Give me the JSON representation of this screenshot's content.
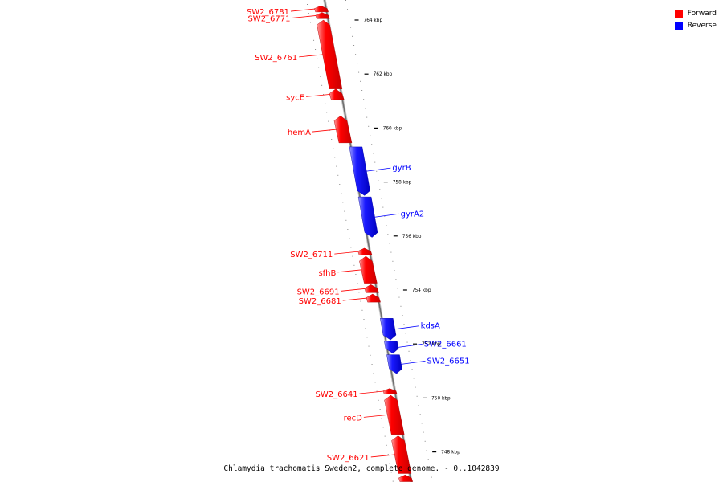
{
  "legend": {
    "forward_label": "Forward",
    "reverse_label": "Reverse",
    "forward_color": "#ff0000",
    "reverse_color": "#0000ff"
  },
  "caption": "Chlamydia trachomatis Sweden2, complete genome. - 0..1042839",
  "scale": {
    "unit": "kbp",
    "ticks": [
      764,
      762,
      760,
      758,
      756,
      754,
      752,
      750,
      748
    ]
  },
  "genes": [
    {
      "name": "SW2_6781",
      "strand": "forward",
      "start_kbp": 764.53,
      "end_kbp": 764.3
    },
    {
      "name": "SW2_6771",
      "strand": "forward",
      "start_kbp": 764.28,
      "end_kbp": 764.05
    },
    {
      "name": "SW2_6761",
      "strand": "forward",
      "start_kbp": 764.0,
      "end_kbp": 761.45
    },
    {
      "name": "sycE",
      "strand": "forward",
      "start_kbp": 761.45,
      "end_kbp": 761.05
    },
    {
      "name": "hemA",
      "strand": "forward",
      "start_kbp": 760.45,
      "end_kbp": 759.45
    },
    {
      "name": "gyrB",
      "strand": "reverse",
      "start_kbp": 759.3,
      "end_kbp": 757.5
    },
    {
      "name": "gyrA2",
      "strand": "reverse",
      "start_kbp": 757.45,
      "end_kbp": 755.95
    },
    {
      "name": "SW2_6711",
      "strand": "forward",
      "start_kbp": 755.55,
      "end_kbp": 755.3
    },
    {
      "name": "sfhB",
      "strand": "forward",
      "start_kbp": 755.25,
      "end_kbp": 754.25
    },
    {
      "name": "SW2_6691",
      "strand": "forward",
      "start_kbp": 754.2,
      "end_kbp": 753.9
    },
    {
      "name": "SW2_6681",
      "strand": "forward",
      "start_kbp": 753.85,
      "end_kbp": 753.55
    },
    {
      "name": "kdsA",
      "strand": "reverse",
      "start_kbp": 752.95,
      "end_kbp": 752.15
    },
    {
      "name": "SW2_6661",
      "strand": "reverse",
      "start_kbp": 752.1,
      "end_kbp": 751.65
    },
    {
      "name": "SW2_6651",
      "strand": "reverse",
      "start_kbp": 751.6,
      "end_kbp": 750.9
    },
    {
      "name": "SW2_6641",
      "strand": "forward",
      "start_kbp": 750.35,
      "end_kbp": 750.15
    },
    {
      "name": "recD",
      "strand": "forward",
      "start_kbp": 750.1,
      "end_kbp": 748.65
    },
    {
      "name": "SW2_6621",
      "strand": "forward",
      "start_kbp": 748.6,
      "end_kbp": 747.2
    },
    {
      "name": "",
      "strand": "forward",
      "start_kbp": 747.15,
      "end_kbp": 746.9
    }
  ]
}
